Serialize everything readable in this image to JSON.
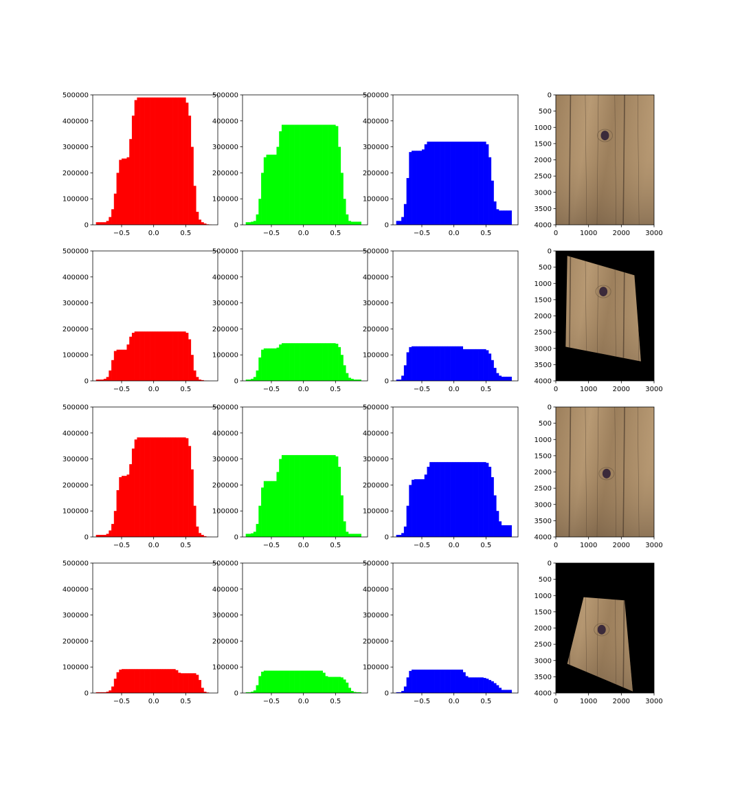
{
  "figure": {
    "bin_edges": [
      -0.9,
      -0.86,
      -0.82,
      -0.78,
      -0.74,
      -0.7,
      -0.66,
      -0.62,
      -0.58,
      -0.54,
      -0.5,
      -0.46,
      -0.42,
      -0.38,
      -0.34,
      -0.3,
      -0.26,
      -0.22,
      -0.18,
      -0.14,
      -0.1,
      -0.06,
      -0.02,
      0.02,
      0.06,
      0.1,
      0.14,
      0.18,
      0.22,
      0.26,
      0.3,
      0.34,
      0.38,
      0.42,
      0.46,
      0.5,
      0.54,
      0.58,
      0.62,
      0.66,
      0.7,
      0.74,
      0.78,
      0.82,
      0.86,
      0.9
    ],
    "hist_x_ticks": [
      -0.5,
      0.0,
      0.5
    ],
    "hist_x_tick_labels": [
      "−0.5",
      "0.0",
      "0.5"
    ],
    "hist_y_ticks": [
      0,
      100000,
      200000,
      300000,
      400000,
      500000
    ],
    "hist_y_tick_labels": [
      "0",
      "100000",
      "200000",
      "300000",
      "400000",
      "500000"
    ],
    "hist_ylim": [
      0,
      500000
    ],
    "hist_xlim": [
      -0.95,
      1.0
    ],
    "image_x_ticks": [
      0,
      1000,
      2000,
      3000
    ],
    "image_x_tick_labels": [
      "0",
      "1000",
      "2000",
      "3000"
    ],
    "image_y_ticks": [
      0,
      500,
      1000,
      1500,
      2000,
      2500,
      3000,
      3500,
      4000
    ],
    "image_y_tick_labels": [
      "0",
      "500",
      "1000",
      "1500",
      "2000",
      "2500",
      "3000",
      "3500",
      "4000"
    ],
    "image_xlim": [
      0,
      3000
    ],
    "image_ylim": [
      4000,
      0
    ],
    "channel_colors": {
      "red": "#ff0000",
      "green": "#00ff00",
      "blue": "#0000ff"
    },
    "wood_colors": {
      "light": "#b89a74",
      "mid": "#9c7f5c",
      "dark": "#6b5640",
      "grain": "#4a3a2c",
      "knot": "#3b2a3a"
    },
    "background_image_color": "#000000"
  },
  "chart_data": [
    {
      "type": "bar",
      "row": 1,
      "channel": "red",
      "bins": "figure.bin_edges",
      "values": [
        10000,
        10000,
        10000,
        10000,
        15000,
        30000,
        60000,
        120000,
        200000,
        250000,
        255000,
        255000,
        260000,
        330000,
        420000,
        480000,
        490000,
        490000,
        490000,
        490000,
        490000,
        490000,
        490000,
        490000,
        490000,
        490000,
        490000,
        490000,
        490000,
        490000,
        490000,
        490000,
        490000,
        490000,
        490000,
        470000,
        420000,
        300000,
        150000,
        50000,
        20000,
        10000,
        5000,
        2000,
        1000
      ]
    },
    {
      "type": "bar",
      "row": 1,
      "channel": "green",
      "bins": "figure.bin_edges",
      "values": [
        10000,
        10000,
        12000,
        15000,
        40000,
        100000,
        200000,
        260000,
        270000,
        270000,
        270000,
        270000,
        300000,
        360000,
        385000,
        385000,
        385000,
        385000,
        385000,
        385000,
        385000,
        385000,
        385000,
        385000,
        385000,
        385000,
        385000,
        385000,
        385000,
        385000,
        385000,
        385000,
        385000,
        385000,
        385000,
        380000,
        300000,
        200000,
        100000,
        40000,
        15000,
        12000,
        12000,
        12000,
        12000
      ]
    },
    {
      "type": "bar",
      "row": 1,
      "channel": "blue",
      "bins": "figure.bin_edges",
      "values": [
        15000,
        15000,
        30000,
        80000,
        180000,
        280000,
        285000,
        285000,
        285000,
        285000,
        290000,
        310000,
        320000,
        320000,
        320000,
        320000,
        320000,
        320000,
        320000,
        320000,
        320000,
        320000,
        320000,
        320000,
        320000,
        320000,
        320000,
        320000,
        320000,
        320000,
        320000,
        320000,
        320000,
        320000,
        320000,
        310000,
        260000,
        170000,
        90000,
        60000,
        55000,
        55000,
        55000,
        55000,
        55000
      ]
    },
    {
      "type": "bar",
      "row": 2,
      "channel": "red",
      "bins": "figure.bin_edges",
      "values": [
        5000,
        5000,
        5000,
        8000,
        15000,
        40000,
        80000,
        115000,
        120000,
        120000,
        120000,
        120000,
        140000,
        170000,
        185000,
        190000,
        190000,
        190000,
        190000,
        190000,
        190000,
        190000,
        190000,
        190000,
        190000,
        190000,
        190000,
        190000,
        190000,
        190000,
        190000,
        190000,
        190000,
        190000,
        190000,
        185000,
        160000,
        100000,
        40000,
        15000,
        5000,
        3000,
        1000,
        500,
        0
      ]
    },
    {
      "type": "bar",
      "row": 2,
      "channel": "green",
      "bins": "figure.bin_edges",
      "values": [
        5000,
        5000,
        8000,
        15000,
        40000,
        90000,
        120000,
        125000,
        125000,
        125000,
        125000,
        125000,
        128000,
        140000,
        145000,
        145000,
        145000,
        145000,
        145000,
        145000,
        145000,
        145000,
        145000,
        145000,
        145000,
        145000,
        145000,
        145000,
        145000,
        145000,
        145000,
        145000,
        145000,
        145000,
        145000,
        143000,
        130000,
        100000,
        60000,
        30000,
        12000,
        8000,
        5000,
        5000,
        5000
      ]
    },
    {
      "type": "bar",
      "row": 2,
      "channel": "blue",
      "bins": "figure.bin_edges",
      "values": [
        5000,
        5000,
        20000,
        60000,
        110000,
        130000,
        133000,
        133000,
        133000,
        133000,
        133000,
        133000,
        133000,
        133000,
        133000,
        133000,
        133000,
        133000,
        133000,
        133000,
        133000,
        133000,
        133000,
        133000,
        133000,
        133000,
        122000,
        122000,
        122000,
        122000,
        122000,
        122000,
        122000,
        122000,
        122000,
        118000,
        105000,
        80000,
        50000,
        30000,
        20000,
        16000,
        16000,
        16000,
        16000
      ]
    },
    {
      "type": "bar",
      "row": 3,
      "channel": "red",
      "bins": "figure.bin_edges",
      "values": [
        8000,
        8000,
        8000,
        8000,
        12000,
        25000,
        50000,
        100000,
        180000,
        230000,
        235000,
        235000,
        240000,
        280000,
        340000,
        375000,
        383000,
        383000,
        383000,
        383000,
        383000,
        383000,
        383000,
        383000,
        383000,
        383000,
        383000,
        383000,
        383000,
        383000,
        383000,
        383000,
        383000,
        383000,
        383000,
        380000,
        350000,
        260000,
        120000,
        40000,
        15000,
        8000,
        3000,
        1000,
        500
      ]
    },
    {
      "type": "bar",
      "row": 3,
      "channel": "green",
      "bins": "figure.bin_edges",
      "values": [
        12000,
        12000,
        14000,
        20000,
        50000,
        120000,
        190000,
        215000,
        215000,
        215000,
        215000,
        215000,
        250000,
        300000,
        315000,
        315000,
        315000,
        315000,
        315000,
        315000,
        315000,
        315000,
        315000,
        315000,
        315000,
        315000,
        315000,
        315000,
        315000,
        315000,
        315000,
        315000,
        315000,
        315000,
        315000,
        310000,
        270000,
        160000,
        60000,
        20000,
        12000,
        12000,
        12000,
        12000,
        12000
      ]
    },
    {
      "type": "bar",
      "row": 3,
      "channel": "blue",
      "bins": "figure.bin_edges",
      "values": [
        8000,
        8000,
        15000,
        40000,
        120000,
        200000,
        220000,
        222000,
        222000,
        222000,
        222000,
        240000,
        270000,
        288000,
        288000,
        288000,
        288000,
        288000,
        288000,
        288000,
        288000,
        288000,
        288000,
        288000,
        288000,
        288000,
        288000,
        288000,
        288000,
        288000,
        288000,
        288000,
        288000,
        288000,
        288000,
        285000,
        270000,
        230000,
        160000,
        100000,
        60000,
        45000,
        45000,
        45000,
        45000
      ]
    },
    {
      "type": "bar",
      "row": 4,
      "channel": "red",
      "bins": "figure.bin_edges",
      "values": [
        3000,
        3000,
        3000,
        3000,
        5000,
        10000,
        25000,
        55000,
        80000,
        90000,
        92000,
        92000,
        92000,
        92000,
        92000,
        92000,
        92000,
        92000,
        92000,
        92000,
        92000,
        92000,
        92000,
        92000,
        92000,
        92000,
        92000,
        92000,
        92000,
        92000,
        92000,
        88000,
        78000,
        76000,
        76000,
        76000,
        76000,
        76000,
        76000,
        70000,
        50000,
        20000,
        5000,
        2000,
        0
      ]
    },
    {
      "type": "bar",
      "row": 4,
      "channel": "green",
      "bins": "figure.bin_edges",
      "values": [
        3000,
        3000,
        5000,
        10000,
        30000,
        65000,
        82000,
        86000,
        86000,
        86000,
        86000,
        86000,
        86000,
        86000,
        86000,
        86000,
        86000,
        86000,
        86000,
        86000,
        86000,
        86000,
        86000,
        86000,
        86000,
        86000,
        86000,
        86000,
        86000,
        86000,
        78000,
        65000,
        62000,
        62000,
        62000,
        62000,
        62000,
        60000,
        52000,
        40000,
        20000,
        8000,
        4000,
        3000,
        3000
      ]
    },
    {
      "type": "bar",
      "row": 4,
      "channel": "blue",
      "bins": "figure.bin_edges",
      "values": [
        3000,
        3000,
        8000,
        25000,
        60000,
        85000,
        90000,
        90000,
        90000,
        90000,
        90000,
        90000,
        90000,
        90000,
        90000,
        90000,
        90000,
        90000,
        90000,
        90000,
        90000,
        90000,
        90000,
        90000,
        90000,
        90000,
        80000,
        65000,
        60000,
        60000,
        60000,
        60000,
        60000,
        60000,
        58000,
        55000,
        50000,
        45000,
        38000,
        30000,
        20000,
        12000,
        12000,
        12000,
        12000
      ]
    }
  ],
  "images": [
    {
      "row": 1,
      "kind": "full",
      "knot": {
        "x": 1500,
        "y": 1250
      }
    },
    {
      "row": 2,
      "kind": "warped",
      "quad": [
        [
          350,
          150
        ],
        [
          2400,
          750
        ],
        [
          2600,
          3400
        ],
        [
          300,
          2950
        ]
      ],
      "knot": {
        "x": 1450,
        "y": 1250
      }
    },
    {
      "row": 3,
      "kind": "full",
      "knot": {
        "x": 1550,
        "y": 2050
      }
    },
    {
      "row": 4,
      "kind": "warped",
      "quad": [
        [
          850,
          1050
        ],
        [
          2100,
          1150
        ],
        [
          2350,
          3950
        ],
        [
          350,
          3100
        ]
      ],
      "knot": {
        "x": 1400,
        "y": 2050
      }
    }
  ]
}
